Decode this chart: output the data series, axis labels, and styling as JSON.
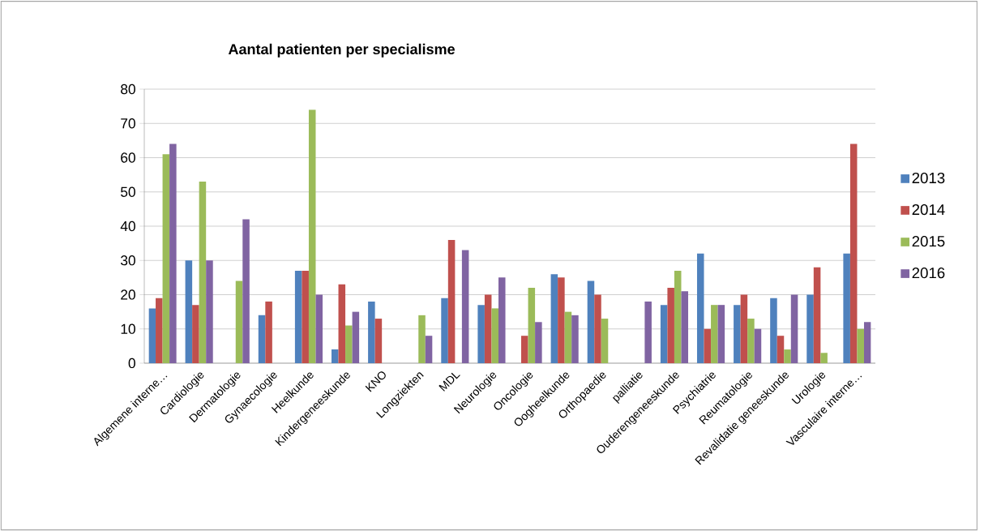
{
  "chart_data": {
    "type": "bar",
    "title": "Aantal patienten per specialisme",
    "categories": [
      "Algemene interne…",
      "Cardiologie",
      "Dermatologie",
      "Gynaecologie",
      "Heelkunde",
      "Kindergeneeskunde",
      "KNO",
      "Longziekten",
      "MDL",
      "Neurologie",
      "Oncologie",
      "Oogheelkunde",
      "Orthopaedie",
      "palliatie",
      "Ouderengeneeskunde",
      "Psychiatrie",
      "Reumatologie",
      "Revalidatie geneeskunde",
      "Urologie",
      "Vasculaire interne…"
    ],
    "series": [
      {
        "name": "2013",
        "color": "#4f81bd",
        "values": [
          16,
          30,
          null,
          14,
          27,
          4,
          18,
          null,
          19,
          17,
          null,
          26,
          24,
          null,
          17,
          32,
          17,
          19,
          20,
          32
        ]
      },
      {
        "name": "2014",
        "color": "#c0504d",
        "values": [
          19,
          17,
          null,
          18,
          27,
          23,
          13,
          null,
          36,
          20,
          8,
          25,
          20,
          null,
          22,
          10,
          20,
          8,
          28,
          64
        ]
      },
      {
        "name": "2015",
        "color": "#9bbb59",
        "values": [
          61,
          53,
          24,
          null,
          74,
          11,
          null,
          14,
          null,
          16,
          22,
          15,
          13,
          null,
          27,
          17,
          13,
          4,
          3,
          10
        ]
      },
      {
        "name": "2016",
        "color": "#8064a2",
        "values": [
          64,
          30,
          42,
          null,
          20,
          15,
          null,
          8,
          33,
          25,
          12,
          14,
          null,
          18,
          21,
          17,
          10,
          20,
          null,
          12
        ]
      }
    ],
    "ylim": [
      0,
      80
    ],
    "yticks": [
      0,
      10,
      20,
      30,
      40,
      50,
      60,
      70,
      80
    ],
    "grid": "y",
    "legend": "right"
  }
}
